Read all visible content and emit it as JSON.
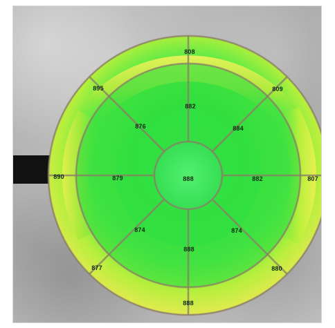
{
  "map": {
    "center": "888",
    "inner": {
      "top": "882",
      "top_right": "884",
      "right": "882",
      "bottom_right": "874",
      "bottom": "888",
      "bottom_left": "874",
      "left": "879",
      "top_left": "876"
    },
    "outer": {
      "top": "808",
      "top_right": "809",
      "right": "807",
      "bottom_right": "880",
      "bottom": "888",
      "bottom_left": "877",
      "left": "890",
      "top_left": "895"
    }
  },
  "colors": {
    "outer_rim": "#9cc82d",
    "sector_lines": "#8a7d66",
    "green": "#1fda3a",
    "yellow": "#e7f05a",
    "dark_band": "#111111"
  }
}
